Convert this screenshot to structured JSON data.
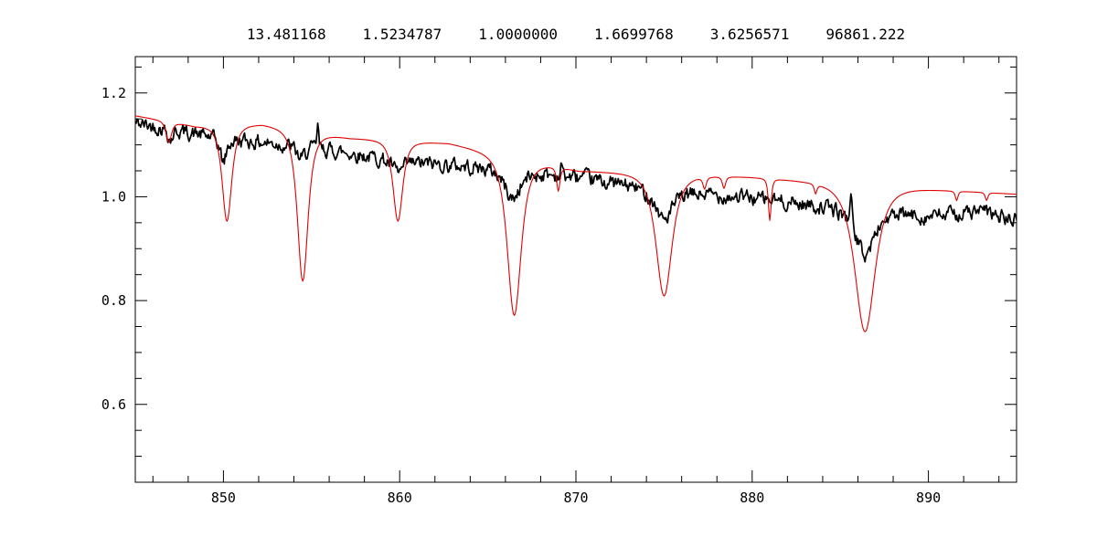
{
  "figure": {
    "background": "#ffffff",
    "header_values": [
      "13.481168",
      "1.5234787",
      "1.0000000",
      "1.6699768",
      "3.6256571",
      "96861.222"
    ]
  },
  "chart_data": {
    "type": "line",
    "title": "13.481168   1.5234787   1.0000000   1.6699768   3.6256571   96861.222",
    "xlabel": "",
    "ylabel": "",
    "xlim": [
      845,
      895
    ],
    "ylim": [
      0.45,
      1.27
    ],
    "xticks": [
      850,
      860,
      870,
      880,
      890
    ],
    "xtick_labels": [
      "850",
      "860",
      "870",
      "880",
      "890"
    ],
    "yticks": [
      0.6,
      0.8,
      1.0,
      1.2
    ],
    "ytick_labels": [
      "0.6",
      "0.8",
      "1.0",
      "1.2"
    ],
    "x_minor_step": 2,
    "y_minor_step": 0.05,
    "grid": false,
    "legend": null,
    "axis_color": "#000000",
    "series": [
      {
        "name": "observed-spectrum",
        "description": "noisy observed stellar spectrum, normalized flux vs wavelength (nm)",
        "color": "#000000",
        "stroke_width": 1.7,
        "sample_step": 0.05,
        "noise_amplitude": 0.012,
        "noise_seed": 42,
        "continuum": [
          [
            845,
            1.142
          ],
          [
            850,
            1.112
          ],
          [
            855,
            1.096
          ],
          [
            860,
            1.068
          ],
          [
            865,
            1.056
          ],
          [
            870,
            1.038
          ],
          [
            875,
            1.012
          ],
          [
            880,
            0.998
          ],
          [
            885,
            0.978
          ],
          [
            890,
            0.962
          ],
          [
            893,
            0.972
          ],
          [
            895,
            0.953
          ]
        ],
        "lines": [
          {
            "center": 847.0,
            "depth": 0.02,
            "width": 0.2
          },
          {
            "center": 850.0,
            "depth": 0.045,
            "width": 0.3
          },
          {
            "center": 854.4,
            "depth": 0.025,
            "width": 0.4
          },
          {
            "center": 859.9,
            "depth": 0.022,
            "width": 0.5
          },
          {
            "center": 866.4,
            "depth": 0.055,
            "width": 0.7
          },
          {
            "center": 875.0,
            "depth": 0.055,
            "width": 0.8
          },
          {
            "center": 886.4,
            "depth": 0.085,
            "width": 0.85
          }
        ],
        "spikes": [
          {
            "center": 855.35,
            "height": 0.04,
            "width": 0.08
          },
          {
            "center": 869.2,
            "height": 0.022,
            "width": 0.07
          },
          {
            "center": 885.6,
            "height": 0.07,
            "width": 0.08
          }
        ]
      },
      {
        "name": "model-spectrum",
        "description": "smooth synthetic model spectrum with Paschen-line absorption (red)",
        "color": "#e00000",
        "stroke_width": 1.1,
        "sample_step": 0.05,
        "noise_amplitude": 0,
        "noise_seed": 7,
        "continuum": [
          [
            845,
            1.156
          ],
          [
            848.4,
            1.136
          ],
          [
            852.2,
            1.14
          ],
          [
            857.2,
            1.113
          ],
          [
            862.8,
            1.103
          ],
          [
            870.2,
            1.05
          ],
          [
            879.8,
            1.038
          ],
          [
            891.3,
            1.012
          ],
          [
            895,
            1.005
          ]
        ],
        "lines": [
          {
            "center": 846.9,
            "depth": 0.04,
            "width": 0.25
          },
          {
            "center": 850.2,
            "depth": 0.185,
            "width": 0.45
          },
          {
            "center": 854.5,
            "depth": 0.29,
            "width": 0.5
          },
          {
            "center": 859.9,
            "depth": 0.155,
            "width": 0.45
          },
          {
            "center": 866.5,
            "depth": 0.305,
            "width": 0.65
          },
          {
            "center": 869.0,
            "depth": 0.045,
            "width": 0.15
          },
          {
            "center": 875.0,
            "depth": 0.235,
            "width": 0.75
          },
          {
            "center": 877.3,
            "depth": 0.022,
            "width": 0.15
          },
          {
            "center": 878.4,
            "depth": 0.022,
            "width": 0.15
          },
          {
            "center": 881.0,
            "depth": 0.08,
            "width": 0.13
          },
          {
            "center": 883.6,
            "depth": 0.018,
            "width": 0.12
          },
          {
            "center": 886.4,
            "depth": 0.283,
            "width": 0.95
          },
          {
            "center": 891.6,
            "depth": 0.018,
            "width": 0.12
          },
          {
            "center": 893.3,
            "depth": 0.015,
            "width": 0.12
          }
        ],
        "spikes": []
      }
    ]
  }
}
